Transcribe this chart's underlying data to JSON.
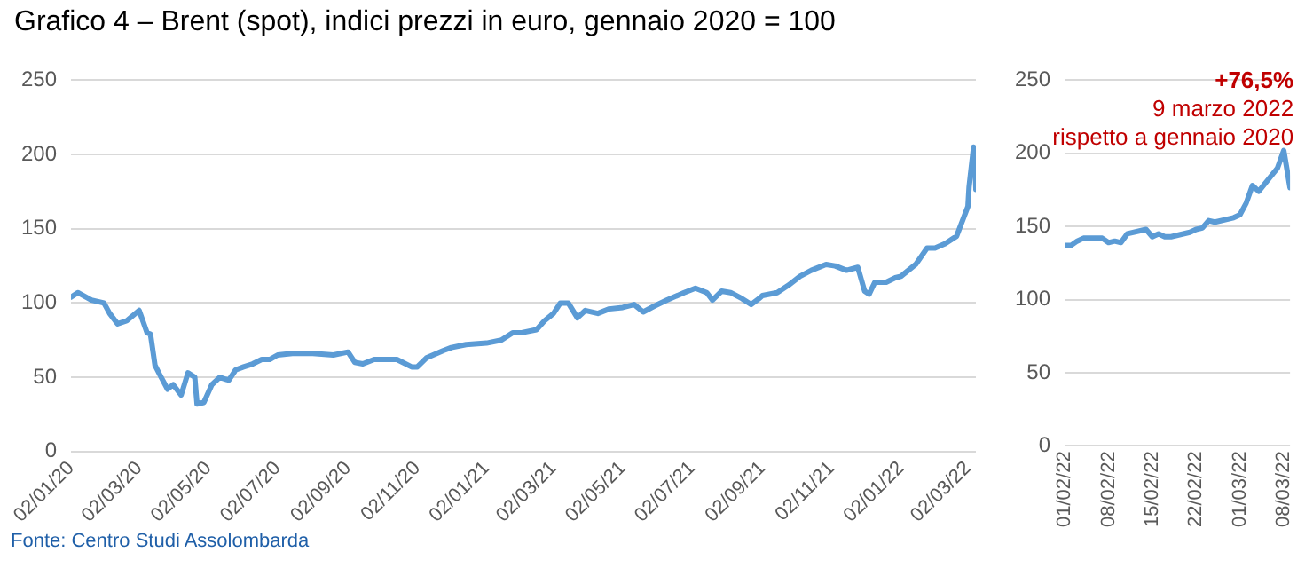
{
  "chart_data": [
    {
      "type": "line",
      "title": "Grafico 4 – Brent (spot), indici prezzi in euro, gennaio 2020 = 100",
      "annotations": [
        "Fonte: Centro Studi Assolombarda"
      ],
      "x": [
        "2020-01-02",
        "2020-01-08",
        "2020-01-20",
        "2020-01-31",
        "2020-02-05",
        "2020-02-12",
        "2020-02-20",
        "2020-03-02",
        "2020-03-09",
        "2020-03-12",
        "2020-03-16",
        "2020-03-20",
        "2020-03-27",
        "2020-04-01",
        "2020-04-08",
        "2020-04-14",
        "2020-04-20",
        "2020-04-22",
        "2020-04-28",
        "2020-05-05",
        "2020-05-12",
        "2020-05-20",
        "2020-05-26",
        "2020-06-02",
        "2020-06-10",
        "2020-06-18",
        "2020-06-25",
        "2020-07-02",
        "2020-07-15",
        "2020-08-02",
        "2020-08-20",
        "2020-09-02",
        "2020-09-08",
        "2020-09-15",
        "2020-09-25",
        "2020-10-02",
        "2020-10-15",
        "2020-10-28",
        "2020-11-02",
        "2020-11-10",
        "2020-11-25",
        "2020-12-02",
        "2020-12-15",
        "2021-01-02",
        "2021-01-15",
        "2021-01-25",
        "2021-02-02",
        "2021-02-15",
        "2021-02-22",
        "2021-03-02",
        "2021-03-08",
        "2021-03-15",
        "2021-03-23",
        "2021-03-30",
        "2021-04-10",
        "2021-04-20",
        "2021-05-02",
        "2021-05-12",
        "2021-05-20",
        "2021-05-30",
        "2021-06-10",
        "2021-06-25",
        "2021-07-05",
        "2021-07-15",
        "2021-07-20",
        "2021-07-28",
        "2021-08-05",
        "2021-08-15",
        "2021-08-23",
        "2021-08-30",
        "2021-09-02",
        "2021-09-15",
        "2021-09-25",
        "2021-10-05",
        "2021-10-15",
        "2021-10-28",
        "2021-11-05",
        "2021-11-15",
        "2021-11-25",
        "2021-12-01",
        "2021-12-05",
        "2021-12-10",
        "2021-12-20",
        "2021-12-28",
        "2022-01-02",
        "2022-01-15",
        "2022-01-25",
        "2022-02-01",
        "2022-02-10",
        "2022-02-20",
        "2022-02-25",
        "2022-03-02",
        "2022-03-03",
        "2022-03-07",
        "2022-03-08",
        "2022-03-09"
      ],
      "series": [
        {
          "color": "#5b9bd5",
          "values": [
            104,
            107,
            102,
            100,
            93,
            86,
            88,
            95,
            80,
            79,
            58,
            52,
            42,
            45,
            38,
            53,
            50,
            32,
            33,
            45,
            50,
            48,
            55,
            57,
            59,
            62,
            62,
            65,
            66,
            66,
            65,
            67,
            60,
            59,
            62,
            62,
            62,
            57,
            57,
            63,
            68,
            70,
            72,
            73,
            75,
            80,
            80,
            82,
            88,
            93,
            100,
            100,
            90,
            95,
            93,
            96,
            97,
            99,
            94,
            98,
            102,
            107,
            110,
            107,
            102,
            108,
            107,
            103,
            99,
            103,
            105,
            107,
            112,
            118,
            122,
            126,
            125,
            122,
            124,
            108,
            106,
            114,
            114,
            117,
            118,
            126,
            137,
            137,
            140,
            145,
            155,
            165,
            178,
            205,
            202,
            176.5
          ]
        }
      ],
      "xlim": [
        "2020-01-02",
        "2022-03-09"
      ],
      "xticks": [
        {
          "value": "2020-01-02",
          "label": "02/01/20"
        },
        {
          "value": "2020-03-02",
          "label": "02/03/20"
        },
        {
          "value": "2020-05-02",
          "label": "02/05/20"
        },
        {
          "value": "2020-07-02",
          "label": "02/07/20"
        },
        {
          "value": "2020-09-02",
          "label": "02/09/20"
        },
        {
          "value": "2020-11-02",
          "label": "02/11/20"
        },
        {
          "value": "2021-01-02",
          "label": "02/01/21"
        },
        {
          "value": "2021-03-02",
          "label": "02/03/21"
        },
        {
          "value": "2021-05-02",
          "label": "02/05/21"
        },
        {
          "value": "2021-07-02",
          "label": "02/07/21"
        },
        {
          "value": "2021-09-02",
          "label": "02/09/21"
        },
        {
          "value": "2021-11-02",
          "label": "02/11/21"
        },
        {
          "value": "2022-01-02",
          "label": "02/01/22"
        },
        {
          "value": "2022-03-02",
          "label": "02/03/22"
        }
      ],
      "ylim": [
        0,
        250
      ],
      "yticks": [
        0,
        50,
        100,
        150,
        200,
        250
      ],
      "grid": "y",
      "legend": false,
      "marker": "none",
      "line_style": "solid"
    },
    {
      "type": "line",
      "annotations": [
        "+76,5%",
        "9 marzo 2022",
        "rispetto a gennaio 2020"
      ],
      "x": [
        "2022-02-01",
        "2022-02-02",
        "2022-02-03",
        "2022-02-04",
        "2022-02-07",
        "2022-02-08",
        "2022-02-09",
        "2022-02-10",
        "2022-02-11",
        "2022-02-14",
        "2022-02-15",
        "2022-02-16",
        "2022-02-17",
        "2022-02-18",
        "2022-02-21",
        "2022-02-22",
        "2022-02-23",
        "2022-02-24",
        "2022-02-25",
        "2022-02-28",
        "2022-03-01",
        "2022-03-02",
        "2022-03-03",
        "2022-03-04",
        "2022-03-07",
        "2022-03-08",
        "2022-03-09"
      ],
      "series": [
        {
          "color": "#5b9bd5",
          "values": [
            137,
            137,
            140,
            142,
            142,
            139,
            140,
            139,
            145,
            148,
            143,
            145,
            143,
            143,
            146,
            148,
            149,
            154,
            153,
            156,
            158,
            166,
            178,
            174,
            190,
            202,
            176.5
          ]
        }
      ],
      "xlim": [
        "2022-02-01",
        "2022-03-09"
      ],
      "xticks": [
        {
          "value": "2022-02-01",
          "label": "01/02/22"
        },
        {
          "value": "2022-02-08",
          "label": "08/02/22"
        },
        {
          "value": "2022-02-15",
          "label": "15/02/22"
        },
        {
          "value": "2022-02-22",
          "label": "22/02/22"
        },
        {
          "value": "2022-03-01",
          "label": "01/03/22"
        },
        {
          "value": "2022-03-08",
          "label": "08/03/22"
        }
      ],
      "ylim": [
        0,
        250
      ],
      "yticks": [
        0,
        50,
        100,
        150,
        200,
        250
      ],
      "grid": "y",
      "legend": false,
      "marker": "none",
      "line_style": "solid"
    }
  ]
}
